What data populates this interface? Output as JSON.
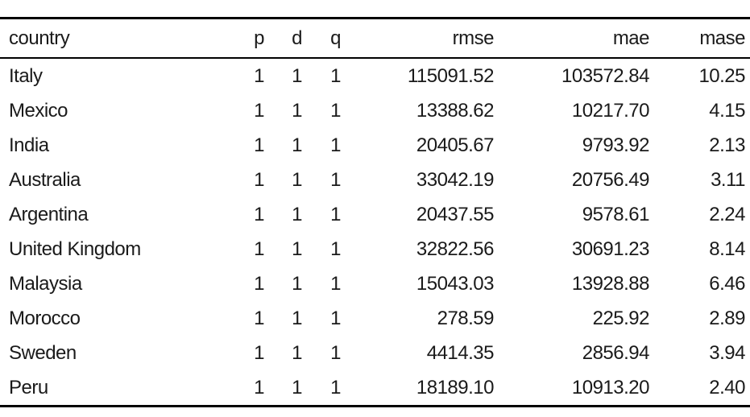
{
  "table": {
    "headers": {
      "country": "country",
      "p": "p",
      "d": "d",
      "q": "q",
      "rmse": "rmse",
      "mae": "mae",
      "mase": "mase"
    },
    "rows": [
      {
        "country": "Italy",
        "p": "1",
        "d": "1",
        "q": "1",
        "rmse": "115091.52",
        "mae": "103572.84",
        "mase": "10.25"
      },
      {
        "country": "Mexico",
        "p": "1",
        "d": "1",
        "q": "1",
        "rmse": "13388.62",
        "mae": "10217.70",
        "mase": "4.15"
      },
      {
        "country": "India",
        "p": "1",
        "d": "1",
        "q": "1",
        "rmse": "20405.67",
        "mae": "9793.92",
        "mase": "2.13"
      },
      {
        "country": "Australia",
        "p": "1",
        "d": "1",
        "q": "1",
        "rmse": "33042.19",
        "mae": "20756.49",
        "mase": "3.11"
      },
      {
        "country": "Argentina",
        "p": "1",
        "d": "1",
        "q": "1",
        "rmse": "20437.55",
        "mae": "9578.61",
        "mase": "2.24"
      },
      {
        "country": "United Kingdom",
        "p": "1",
        "d": "1",
        "q": "1",
        "rmse": "32822.56",
        "mae": "30691.23",
        "mase": "8.14"
      },
      {
        "country": "Malaysia",
        "p": "1",
        "d": "1",
        "q": "1",
        "rmse": "15043.03",
        "mae": "13928.88",
        "mase": "6.46"
      },
      {
        "country": "Morocco",
        "p": "1",
        "d": "1",
        "q": "1",
        "rmse": "278.59",
        "mae": "225.92",
        "mase": "2.89"
      },
      {
        "country": "Sweden",
        "p": "1",
        "d": "1",
        "q": "1",
        "rmse": "4414.35",
        "mae": "2856.94",
        "mase": "3.94"
      },
      {
        "country": "Peru",
        "p": "1",
        "d": "1",
        "q": "1",
        "rmse": "18189.10",
        "mae": "10913.20",
        "mase": "2.40"
      }
    ]
  }
}
